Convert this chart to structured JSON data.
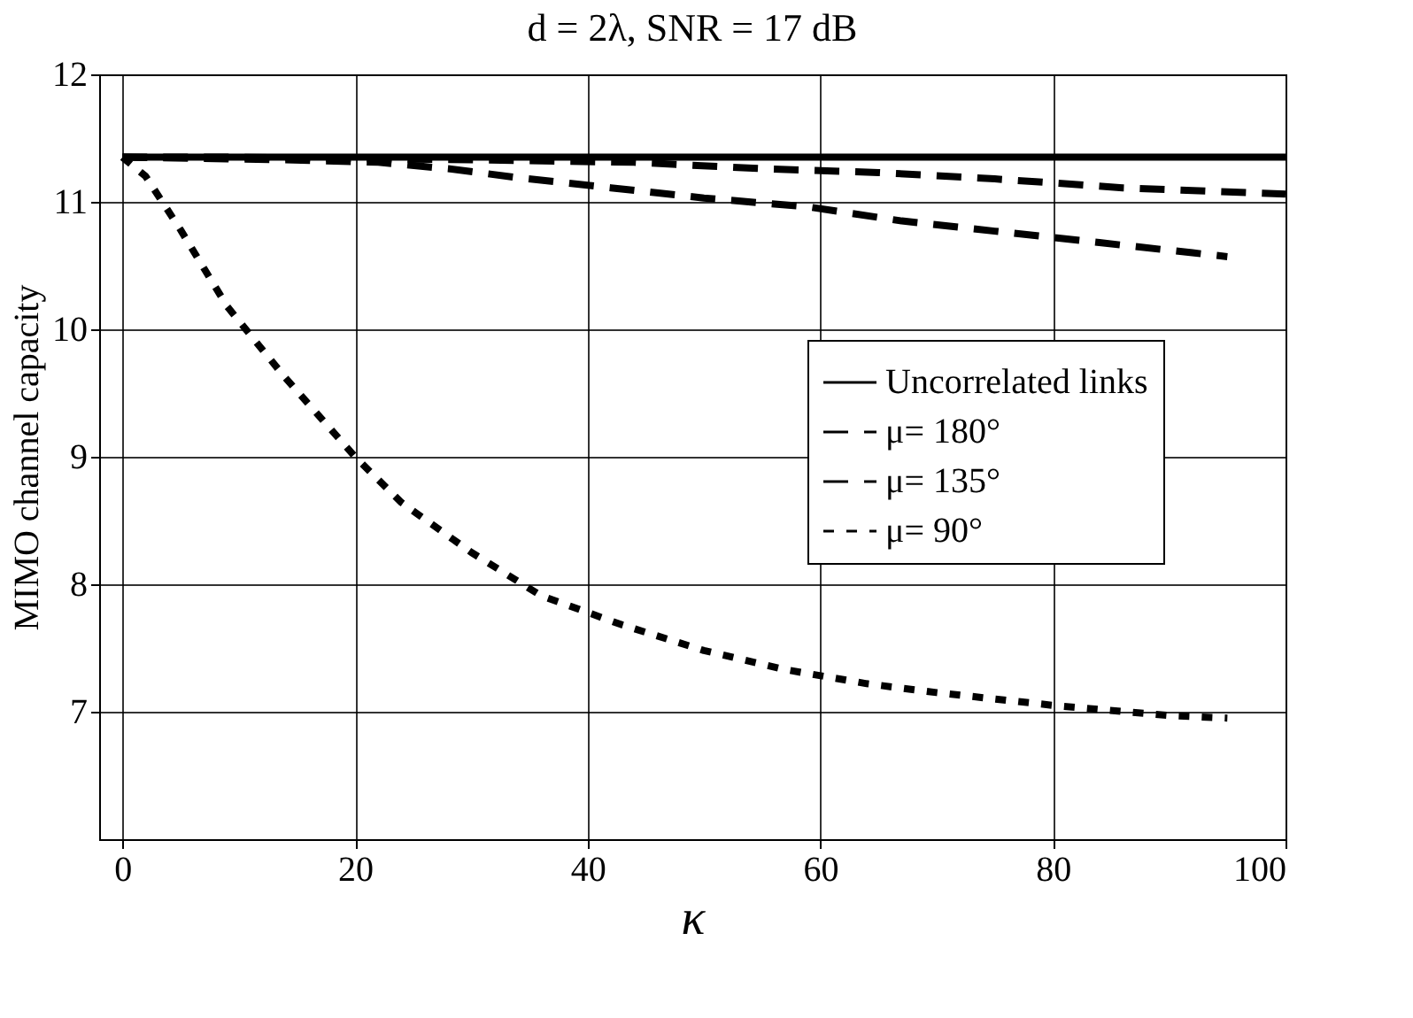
{
  "chart_data": {
    "type": "line",
    "title": "d = 2λ, SNR = 17 dB",
    "xlabel": "κ",
    "ylabel": "MIMO channel capacity",
    "xlim": [
      -2,
      100
    ],
    "xticks": [
      0,
      20,
      40,
      60,
      80,
      100
    ],
    "ylim": [
      6,
      12
    ],
    "yticks": [
      7,
      8,
      9,
      10,
      11,
      12
    ],
    "grid": true,
    "legend": "right",
    "marker": "none",
    "series": [
      {
        "name": "Uncorrelated links",
        "color": "#000000",
        "line_style": "solid",
        "x": [
          0,
          20,
          40,
          60,
          80,
          100
        ],
        "values": [
          11.35,
          11.35,
          11.35,
          11.35,
          11.35,
          11.35
        ]
      },
      {
        "name": "μ= 180°",
        "color": "#000000",
        "line_style": "dashed",
        "x": [
          0,
          10,
          20,
          30,
          44,
          55,
          65,
          75,
          86,
          100
        ],
        "values": [
          11.35,
          11.35,
          11.34,
          11.33,
          11.31,
          11.26,
          11.23,
          11.18,
          11.11,
          11.06
        ]
      },
      {
        "name": "μ= 135°",
        "color": "#000000",
        "line_style": "dashed",
        "x": [
          0,
          14,
          22,
          28,
          34,
          42,
          50,
          59,
          67,
          75,
          84,
          92,
          95
        ],
        "values": [
          11.35,
          11.33,
          11.31,
          11.26,
          11.19,
          11.11,
          11.03,
          10.96,
          10.85,
          10.77,
          10.68,
          10.6,
          10.57
        ]
      },
      {
        "name": "μ= 90°",
        "color": "#000000",
        "line_style": "dotted",
        "x": [
          0,
          2,
          5,
          9,
          14,
          20,
          24,
          30,
          36,
          43,
          50,
          57,
          64,
          70,
          75,
          80,
          90,
          95
        ],
        "values": [
          11.35,
          11.2,
          10.78,
          10.18,
          9.62,
          9.0,
          8.64,
          8.25,
          7.91,
          7.68,
          7.48,
          7.33,
          7.22,
          7.15,
          7.1,
          7.05,
          6.97,
          6.95
        ]
      }
    ]
  }
}
